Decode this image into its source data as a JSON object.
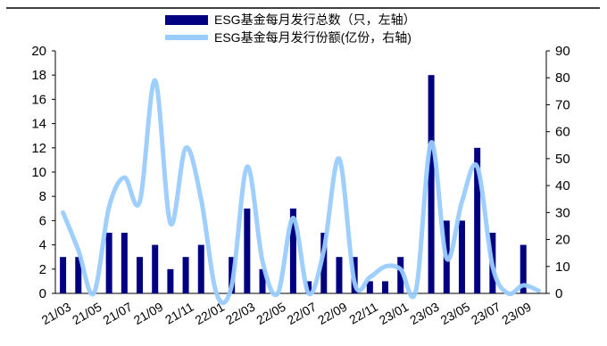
{
  "chart_data": {
    "type": "bar",
    "title": "",
    "xlabel": "",
    "ylabel": "",
    "x_tick_labels": [
      "21/03",
      "21/05",
      "21/07",
      "21/09",
      "21/11",
      "22/01",
      "22/03",
      "22/05",
      "22/07",
      "22/09",
      "22/11",
      "23/01",
      "23/03",
      "23/05",
      "23/07",
      "23/09"
    ],
    "months": [
      "21/03",
      "21/04",
      "21/05",
      "21/06",
      "21/07",
      "21/08",
      "21/09",
      "21/10",
      "21/11",
      "21/12",
      "22/01",
      "22/02",
      "22/03",
      "22/04",
      "22/05",
      "22/06",
      "22/07",
      "22/08",
      "22/09",
      "22/10",
      "22/11",
      "22/12",
      "23/01",
      "23/02",
      "23/03",
      "23/04",
      "23/05",
      "23/06",
      "23/07",
      "23/08",
      "23/09",
      "23/10"
    ],
    "left_axis": {
      "ylim": [
        0,
        20
      ],
      "ticks": [
        "0",
        "2",
        "4",
        "6",
        "8",
        "10",
        "12",
        "14",
        "16",
        "18",
        "20"
      ]
    },
    "right_axis": {
      "ylim": [
        0,
        90
      ],
      "ticks": [
        "0",
        "10",
        "20",
        "30",
        "40",
        "50",
        "60",
        "70",
        "80",
        "90"
      ]
    },
    "series": [
      {
        "name": "ESG基金每月发行总数（只，左轴）",
        "type": "bar",
        "axis": "left",
        "color": "#000080",
        "values": [
          3,
          3,
          0,
          5,
          5,
          3,
          4,
          2,
          3,
          4,
          0,
          3,
          7,
          2,
          0,
          7,
          1,
          5,
          3,
          3,
          1,
          1,
          3,
          0,
          18,
          6,
          6,
          12,
          5,
          0,
          4,
          0
        ]
      },
      {
        "name": "ESG基金每月发行份额(亿份，右轴)",
        "type": "line",
        "axis": "right",
        "color": "#99ccff",
        "values": [
          30,
          16,
          0,
          32,
          43,
          34,
          79,
          26,
          54,
          35,
          0,
          3,
          47,
          12,
          0,
          28,
          0,
          16,
          50,
          4,
          6,
          10,
          9,
          1,
          56,
          13,
          34,
          47,
          10,
          0,
          3,
          1
        ]
      }
    ],
    "legend_position": "top-center"
  }
}
